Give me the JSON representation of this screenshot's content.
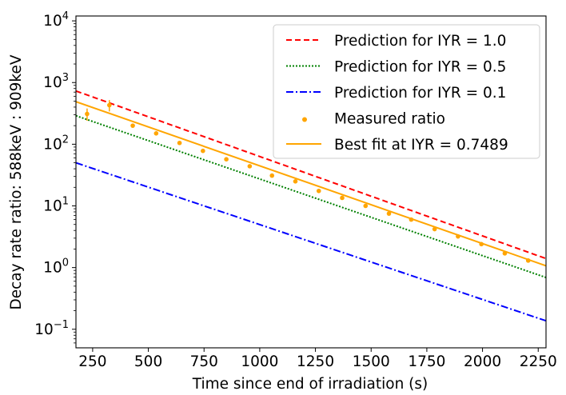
{
  "chart_data": {
    "type": "line",
    "title": "",
    "xlabel": "Time since end of irradiation (s)",
    "ylabel": "Decay rate ratio: 588keV : 909keV",
    "xlim": [
      175,
      2285
    ],
    "ylim": [
      0.05,
      12000
    ],
    "yscale": "log",
    "xticks": [
      250,
      500,
      750,
      1000,
      1250,
      1500,
      1750,
      2000,
      2250
    ],
    "xtick_labels": [
      "250",
      "500",
      "750",
      "1000",
      "1250",
      "1500",
      "1750",
      "2000",
      "2250"
    ],
    "yticks": [
      0.1,
      1,
      10,
      100,
      1000,
      10000
    ],
    "ytick_bases": [
      "10",
      "10",
      "10",
      "10",
      "10",
      "10"
    ],
    "ytick_exponents": [
      "−1",
      "0",
      "1",
      "2",
      "3",
      "4"
    ],
    "legend_position": "upper right",
    "series": [
      {
        "name": "Prediction for IYR = 1.0",
        "style": "dashed",
        "color": "#ff0000",
        "x": [
          175,
          2285
        ],
        "y": [
          730,
          1.4
        ]
      },
      {
        "name": "Prediction for IYR = 0.5",
        "style": "dotted",
        "color": "#008000",
        "x": [
          175,
          2285
        ],
        "y": [
          290,
          0.69
        ]
      },
      {
        "name": "Prediction for IYR = 0.1",
        "style": "dashdot",
        "color": "#0000ff",
        "x": [
          175,
          2285
        ],
        "y": [
          50,
          0.137
        ]
      },
      {
        "name": "Measured ratio",
        "style": "scatter",
        "color": "#ffa500",
        "x": [
          225,
          325,
          430,
          535,
          640,
          745,
          850,
          955,
          1055,
          1160,
          1265,
          1370,
          1475,
          1580,
          1680,
          1785,
          1890,
          1995,
          2100,
          2205
        ],
        "y": [
          310,
          430,
          200,
          150,
          105,
          78,
          57,
          44,
          31,
          25,
          17.5,
          13.5,
          10,
          7.5,
          6,
          4.2,
          3.2,
          2.4,
          1.7,
          1.3
        ],
        "yerr": [
          70,
          90,
          0,
          0,
          0,
          0,
          0,
          0,
          0,
          0,
          0,
          0,
          0,
          0,
          0,
          0,
          0,
          0,
          0,
          0
        ]
      },
      {
        "name": "Best fit at IYR = 0.7489",
        "style": "solid",
        "color": "#ffa500",
        "x": [
          175,
          2285
        ],
        "y": [
          490,
          1.07
        ]
      }
    ]
  }
}
